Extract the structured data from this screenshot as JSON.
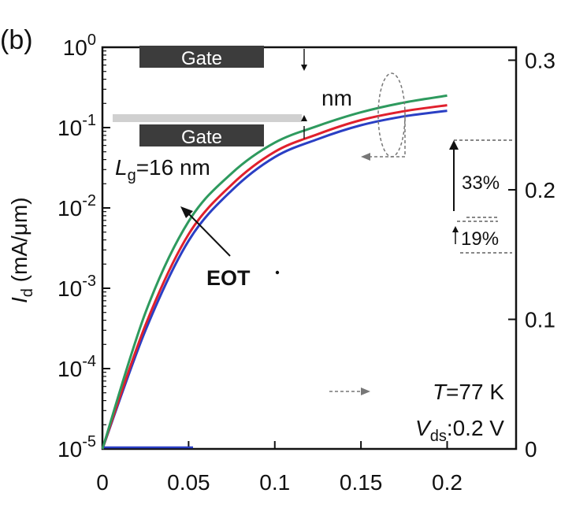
{
  "panel_label": "(b)",
  "colors": {
    "green": "#2e9a5e",
    "red": "#e0202c",
    "blue": "#2a3fc4",
    "gate_fill": "#3c3c3c",
    "guide": "#8a8a8a"
  },
  "inset": {
    "gate_top": "Gate",
    "gate_bottom": "Gate",
    "thickness_unit": "nm"
  },
  "annotations": {
    "lg_symbol": "L",
    "lg_sub": "g",
    "lg_value": "=16 nm",
    "eot": "EOT",
    "pct_top": "33%",
    "pct_bottom": "19%",
    "temp_symbol": "T",
    "temp_value": "=77 K",
    "vds_symbol": "V",
    "vds_sub": "ds",
    "vds_value": ":0.2 V"
  },
  "chart_data": {
    "type": "line",
    "y_scale": "log",
    "xlim": [
      0,
      0.24
    ],
    "ylim": [
      1e-05,
      1
    ],
    "x_ticks": [
      0,
      0.05,
      0.1,
      0.15,
      0.2
    ],
    "x_tick_labels": [
      "0",
      "0.05",
      "0.1",
      "0.15",
      "0.2"
    ],
    "y_ticks": [
      {
        "base": "10",
        "exp": "0",
        "value": 1
      },
      {
        "base": "10",
        "exp": "-1",
        "value": 0.1
      },
      {
        "base": "10",
        "exp": "-2",
        "value": 0.01
      },
      {
        "base": "10",
        "exp": "-3",
        "value": 0.001
      },
      {
        "base": "10",
        "exp": "-4",
        "value": 0.0001
      },
      {
        "base": "10",
        "exp": "-5",
        "value": 1e-05
      }
    ],
    "ylabel_symbol": "I",
    "ylabel_sub": "d",
    "ylabel_unit": " (mA/μm)",
    "right_axis": {
      "ticks": [
        "0.3",
        "0.2",
        "0.1",
        "0"
      ],
      "values": [
        0.3,
        0.2,
        0.1,
        0
      ]
    },
    "x": [
      0,
      0.025,
      0.05,
      0.075,
      0.1,
      0.125,
      0.15,
      0.175,
      0.2
    ],
    "series": [
      {
        "color": "green",
        "values": [
          1e-05,
          0.0005,
          0.0068,
          0.027,
          0.065,
          0.105,
          0.155,
          0.205,
          0.25
        ]
      },
      {
        "color": "red",
        "values": [
          1e-05,
          0.00035,
          0.0047,
          0.0195,
          0.05,
          0.083,
          0.124,
          0.16,
          0.19
        ]
      },
      {
        "color": "blue",
        "values": [
          1e-05,
          0.0003,
          0.0039,
          0.0165,
          0.043,
          0.072,
          0.107,
          0.138,
          0.162
        ]
      }
    ]
  }
}
